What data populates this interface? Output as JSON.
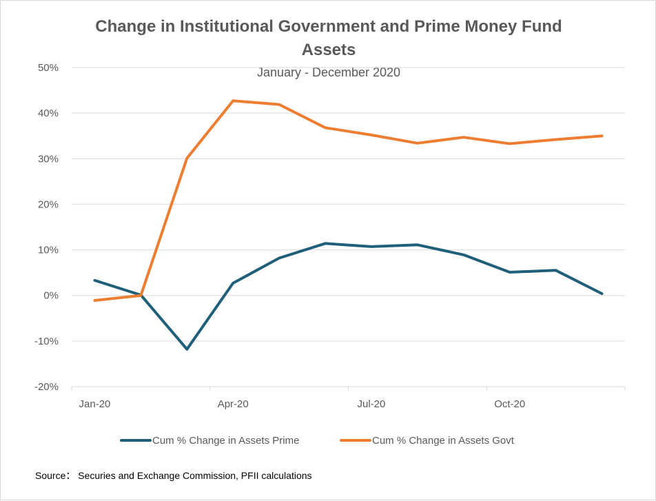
{
  "chart_data": {
    "type": "line",
    "title": "Change in Institutional Government and Prime Money Fund",
    "title_line2": "Assets",
    "subtitle": "January - December 2020",
    "categories": [
      "Jan-20",
      "Feb-20",
      "Mar-20",
      "Apr-20",
      "May-20",
      "Jun-20",
      "Jul-20",
      "Aug-20",
      "Sep-20",
      "Oct-20",
      "Nov-20",
      "Dec-20"
    ],
    "x_tick_labels": [
      "Jan-20",
      "Apr-20",
      "Jul-20",
      "Oct-20"
    ],
    "y_tick_labels": [
      "50%",
      "40%",
      "30%",
      "20%",
      "10%",
      "0%",
      "-10%",
      "-20%"
    ],
    "ylim": [
      -20,
      50
    ],
    "y_unit": "%",
    "grid": true,
    "legend_position": "bottom",
    "series": [
      {
        "name": "Cum % Change in Assets Prime",
        "color": "#1f5f7a",
        "values": [
          3.3,
          0.1,
          -11.8,
          2.7,
          8.2,
          11.4,
          10.7,
          11.1,
          8.9,
          5.1,
          5.5,
          0.4
        ]
      },
      {
        "name": "Cum % Change in Assets Govt",
        "color": "#ed7d31",
        "values": [
          -1.1,
          0.0,
          30.1,
          42.7,
          41.9,
          36.8,
          35.2,
          33.4,
          34.7,
          33.3,
          34.2,
          35.0
        ]
      }
    ],
    "source": "Source： Securies and Exchange Commission, PFII calculations"
  }
}
